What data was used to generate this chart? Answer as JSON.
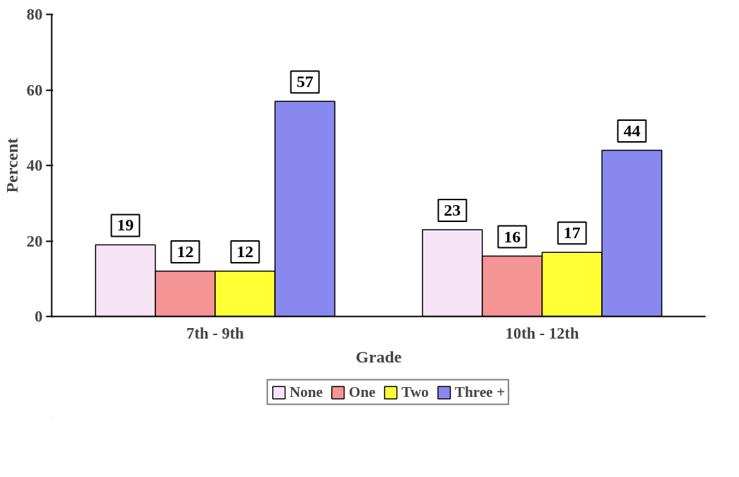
{
  "chart_data": {
    "type": "bar",
    "xlabel": "Grade",
    "ylabel": "Percent",
    "categories": [
      "7th - 9th",
      "10th - 12th"
    ],
    "series": [
      {
        "name": "None",
        "color": "#f4e4f4",
        "values": [
          19,
          23
        ]
      },
      {
        "name": "One",
        "color": "#f49494",
        "values": [
          12,
          16
        ]
      },
      {
        "name": "Two",
        "color": "#ffff33",
        "values": [
          12,
          17
        ]
      },
      {
        "name": "Three +",
        "color": "#8888ee",
        "values": [
          57,
          44
        ]
      }
    ],
    "ylim": [
      0,
      80
    ],
    "yticks": [
      0,
      20,
      40,
      60,
      80
    ],
    "grid": false,
    "legend": "bottom",
    "data_labels": true
  }
}
